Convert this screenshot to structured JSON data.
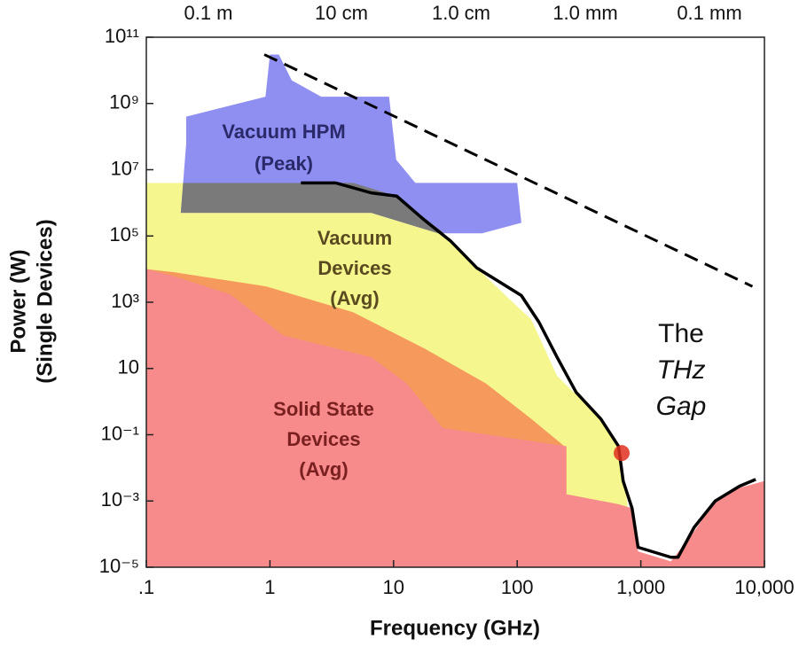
{
  "chart_data": {
    "type": "area",
    "x_label": "Frequency (GHz)",
    "y_label": [
      "Power (W)",
      "(Single Devices)"
    ],
    "top_labels": [
      "0.1 m",
      "10 cm",
      "1.0 cm",
      "1.0 mm",
      "0.1 mm"
    ],
    "xscale": "log",
    "yscale": "log",
    "xlim": [
      0.1,
      10000
    ],
    "ylim": [
      1e-05,
      100000000000.0
    ],
    "xticks": [
      {
        "value": 0.1,
        "label": ".1"
      },
      1,
      10,
      100,
      {
        "value": 1000,
        "label": "1,000"
      },
      {
        "value": 10000,
        "label": "10,000"
      }
    ],
    "yticks": [
      {
        "value": 1e-05,
        "label": "10⁻⁵"
      },
      {
        "value": 0.001,
        "label": "10⁻³"
      },
      {
        "value": 0.1,
        "label": "10⁻¹"
      },
      10,
      {
        "value": 1000,
        "label": "10³"
      },
      {
        "value": 100000.0,
        "label": "10⁵"
      },
      {
        "value": 10000000.0,
        "label": "10⁷"
      },
      {
        "value": 1000000000.0,
        "label": "10⁹"
      },
      {
        "value": 100000000000.0,
        "label": "10¹¹"
      }
    ],
    "regions": [
      {
        "label": [
          "Vacuum",
          "Devices",
          "(Avg)"
        ],
        "color": "#f6f68e",
        "label_color": "#5a4a20",
        "x": [
          0.1,
          4.7,
          10.6,
          25,
          47,
          92,
          130,
          210,
          475,
          660,
          780,
          780,
          0.1
        ],
        "values": [
          4000000.0,
          4000000.0,
          1600000.0,
          130000.0,
          11000.0,
          1000,
          300,
          6,
          0.3,
          0.045,
          0.0008,
          1e-05,
          1e-05
        ]
      },
      {
        "color": "#f59a5c",
        "x": [
          0.1,
          0.17,
          0.93,
          4.7,
          17.8,
          56,
          130,
          250,
          250,
          0.1
        ],
        "values": [
          10000.0,
          8000,
          3000,
          500,
          40,
          3.5,
          0.3,
          0.04,
          1e-05,
          1e-05
        ]
      },
      {
        "label": [
          "Solid State",
          "Devices",
          "(Avg)"
        ],
        "color": "#f78a8a",
        "label_color": "#7a2020",
        "x": [
          0.1,
          0.17,
          0.48,
          1.28,
          6.6,
          12.8,
          25,
          250,
          250,
          660,
          850,
          950,
          1750,
          2700,
          4000,
          6300,
          10000,
          10000,
          0.1
        ],
        "values": [
          10000.0,
          6000,
          1700,
          100,
          22,
          3.5,
          0.16,
          0.045,
          0.0016,
          0.0008,
          0.0006,
          3e-05,
          1.5e-05,
          0.00012,
          0.001,
          0.0025,
          0.004,
          1e-05,
          1e-05
        ]
      },
      {
        "label": [
          "Vacuum HPM",
          "(Peak)"
        ],
        "color": "#8f8ff2",
        "label_color": "#2a2a6a",
        "x": [
          0.21,
          0.92,
          1.0,
          1.18,
          1.5,
          2.6,
          9.2,
          10.5,
          15,
          100,
          108,
          52,
          23,
          6.6,
          0.19,
          0.21
        ],
        "values": [
          400000000.0,
          1600000000.0,
          30000000000.0,
          30000000000.0,
          5000000000.0,
          1600000000.0,
          1600000000.0,
          20000000.0,
          4000000.0,
          4000000.0,
          250000.0,
          120000.0,
          120000.0,
          500000.0,
          500000.0,
          60000000.0
        ]
      }
    ],
    "overlap_color": "#7a7a7a",
    "series": [
      {
        "color": "#000000",
        "dashed": false,
        "x": [
          1.78,
          3.4,
          6.6,
          10.6,
          17.8,
          29,
          47,
          108,
          150,
          210,
          300,
          475,
          660,
          720,
          850,
          950,
          1750,
          2000,
          2700,
          4000,
          6300,
          8500
        ],
        "values": [
          4000000.0,
          4000000.0,
          2000000.0,
          1600000.0,
          300000.0,
          70000.0,
          11000.0,
          1600,
          250,
          22,
          1.9,
          0.3,
          0.045,
          0.004,
          0.0006,
          4e-05,
          2e-05,
          2e-05,
          0.00016,
          0.001,
          0.0028,
          0.0045
        ]
      },
      {
        "color": "#000000",
        "dashed": true,
        "x": [
          0.9,
          8000
        ],
        "values": [
          30000000000.0,
          3000
        ]
      }
    ],
    "points": [
      {
        "x": 700,
        "value": 0.028,
        "color": "#e0301e"
      }
    ],
    "annotation": [
      "The",
      "THz",
      "Gap"
    ]
  }
}
